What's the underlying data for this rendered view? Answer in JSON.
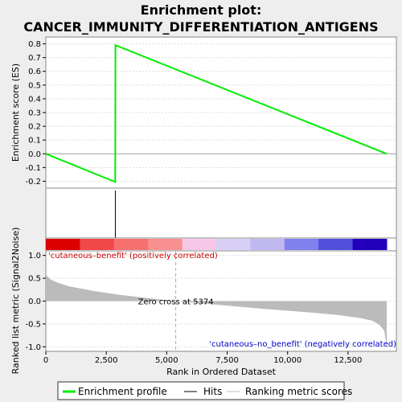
{
  "title_line1": "Enrichment plot:",
  "title_line2": "CANCER_IMMUNITY_DIFFERENTIATION_ANTIGENS",
  "chart_data": [
    {
      "type": "line",
      "panel": "enrichment",
      "ylabel": "Enrichment score (ES)",
      "ylim": [
        -0.25,
        0.85
      ],
      "yticks": [
        "0.8",
        "0.7",
        "0.6",
        "0.5",
        "0.4",
        "0.3",
        "0.2",
        "0.1",
        "0.0",
        "-0.1",
        "-0.2"
      ],
      "ytick_values": [
        0.8,
        0.7,
        0.6,
        0.5,
        0.4,
        0.3,
        0.2,
        0.1,
        0.0,
        -0.1,
        -0.2
      ],
      "series": [
        {
          "name": "Enrichment profile",
          "color": "#00ee00",
          "x": [
            0,
            2870,
            2880,
            14100
          ],
          "y": [
            0.0,
            -0.205,
            0.79,
            0.0
          ]
        }
      ],
      "hits": [
        2875
      ]
    },
    {
      "type": "area",
      "panel": "ranked-metric",
      "xlabel": "Rank in Ordered Dataset",
      "ylabel": "Ranked list metric (Signal2Noise)",
      "xlim": [
        0,
        14500
      ],
      "ylim": [
        -1.1,
        1.1
      ],
      "xticks": [
        "0",
        "2,500",
        "5,000",
        "7,500",
        "10,000",
        "12,500"
      ],
      "xtick_values": [
        0,
        2500,
        5000,
        7500,
        10000,
        12500
      ],
      "yticks": [
        "1.0",
        "0.5",
        "0.0",
        "-0.5",
        "-1.0"
      ],
      "ytick_values": [
        1.0,
        0.5,
        0.0,
        -0.5,
        -1.0
      ],
      "color": "#bbbbbb",
      "x": [
        0,
        50,
        200,
        500,
        1000,
        2000,
        3000,
        4000,
        5000,
        5374,
        6000,
        7500,
        9000,
        10500,
        12000,
        13000,
        13500,
        13800,
        14000,
        14100
      ],
      "y": [
        0.65,
        0.55,
        0.47,
        0.4,
        0.32,
        0.22,
        0.14,
        0.08,
        0.02,
        0.0,
        -0.03,
        -0.1,
        -0.17,
        -0.23,
        -0.3,
        -0.37,
        -0.43,
        -0.52,
        -0.65,
        -1.0
      ],
      "zero_cross_label": "Zero cross at 5374",
      "pos_label": "'cutaneous–benefit' (positively correlated)",
      "neg_label": "'cutaneous–no_benefit' (negatively correlated)"
    }
  ],
  "heatmap_colors": [
    "#dd0000",
    "#f04848",
    "#f67070",
    "#f89090",
    "#f8c8e8",
    "#d8d0f4",
    "#c0b8f0",
    "#8080ee",
    "#5050dd",
    "#2200bb"
  ],
  "legend": {
    "items": [
      {
        "label": "Enrichment profile",
        "color": "#00ee00"
      },
      {
        "label": "Hits",
        "color": "#000000"
      },
      {
        "label": "Ranking metric scores",
        "color": "#bbbbbb"
      }
    ]
  }
}
